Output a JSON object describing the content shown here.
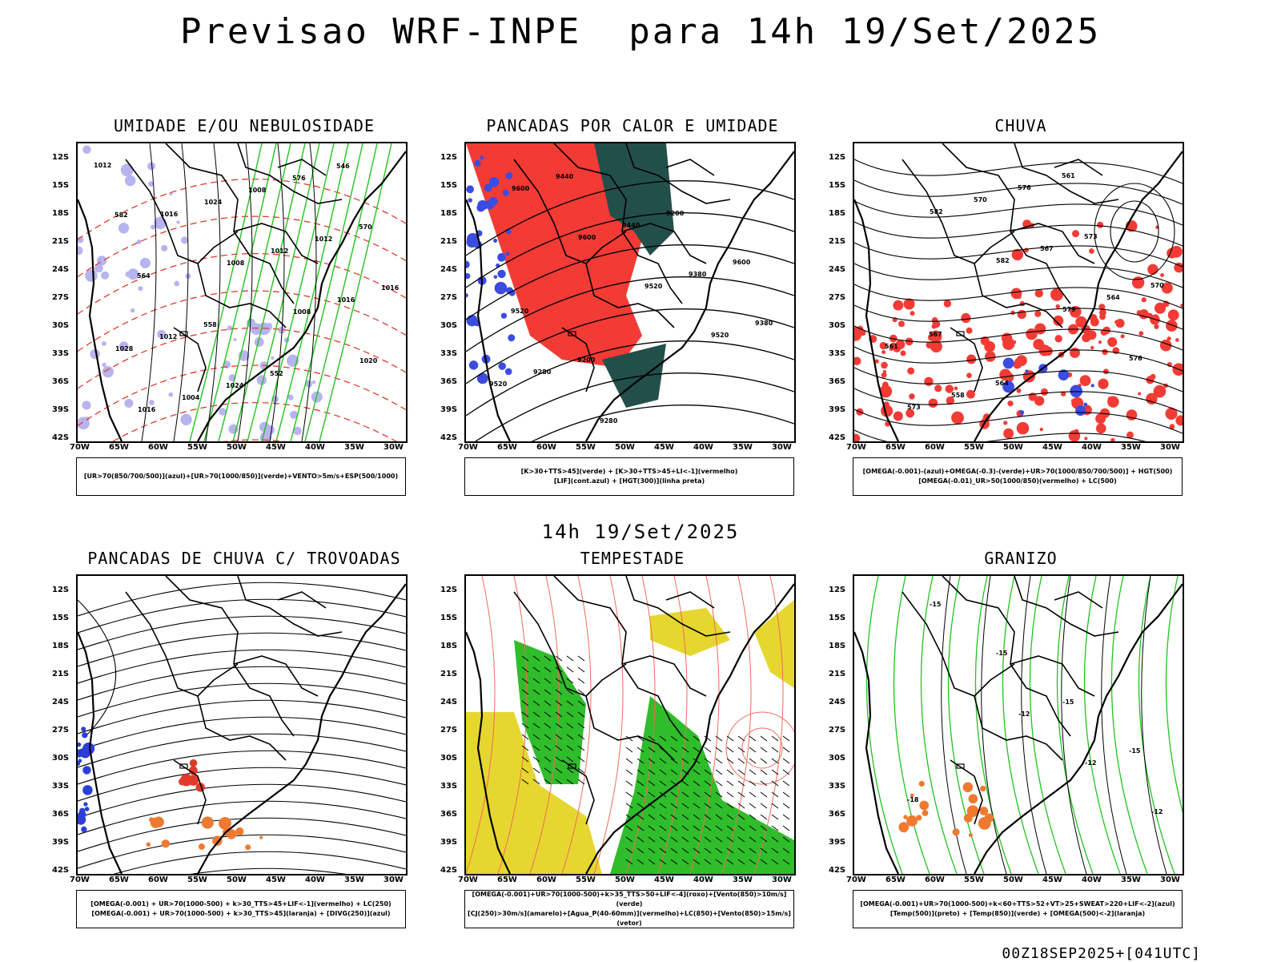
{
  "header": {
    "title": "Previsao WRF-INPE  para 14h 19/Set/2025",
    "mid_title": "14h 19/Set/2025",
    "footer": "00Z18SEP2025+[041UTC]"
  },
  "axes": {
    "lat_labels": [
      "12S",
      "15S",
      "18S",
      "21S",
      "24S",
      "27S",
      "30S",
      "33S",
      "36S",
      "39S",
      "42S"
    ],
    "lon_labels": [
      "70W",
      "65W",
      "60W",
      "55W",
      "50W",
      "45W",
      "40W",
      "35W",
      "30W"
    ]
  },
  "panels": [
    {
      "title": "UMIDADE E/OU NEBULOSIDADE",
      "legend": [
        "[UR>70(850/700/500)](azul)+[UR>70(1000/850)](verde)+VENTO>5m/s+ESP(500/1000)"
      ],
      "contour_labels": [
        "1012",
        "1016",
        "1008",
        "1008",
        "1020",
        "1016",
        "1024",
        "1012",
        "1016",
        "1028",
        "1004",
        "1008",
        "1012",
        "1016",
        "1012",
        "1024",
        "576",
        "570",
        "564",
        "558",
        "552",
        "546",
        "582"
      ]
    },
    {
      "title": "PANCADAS POR CALOR E UMIDADE",
      "legend": [
        "[K>30+TTS>45](verde) + [K>30+TTS>45+LI<-1](vermelho)",
        "[LIF](cont.azul) + [HGT(300)](linha preta)"
      ],
      "contour_labels": [
        "9600",
        "9600",
        "9520",
        "9520",
        "9520",
        "9440",
        "9440",
        "9380",
        "9380",
        "9280",
        "9280",
        "9200",
        "9600",
        "9520",
        "9200"
      ]
    },
    {
      "title": "CHUVA",
      "legend": [
        "[OMEGA(-0.001)-(azul)+OMEGA(-0.3)-(verde)+UR>70(1000/850/700/500)] + HGT(500)",
        "[OMEGA(-0.01)_UR>50(1000/850)(vermelho) + LC(500)"
      ],
      "contour_labels": [
        "582",
        "582",
        "579",
        "576",
        "573",
        "570",
        "567",
        "564",
        "561",
        "558",
        "576",
        "573",
        "570",
        "567",
        "564",
        "561"
      ]
    },
    {
      "title": "PANCADAS DE CHUVA C/ TROVOADAS",
      "legend": [
        "[OMEGA(-0.001) + UR>70(1000-500) + k>30_TTS>45+LIF<-1](vermelho) + LC(250)",
        "[OMEGA(-0.001) + UR>70(1000-500) + k>30_TTS>45](laranja) + [DIVG(250)](azul)"
      ],
      "contour_labels": []
    },
    {
      "title": "TEMPESTADE",
      "legend": [
        "[OMEGA(-0.001)+UR>70(1000-500)+k>35_TTS>50+LIF<-4](roxo)+[Vento(850)>10m/s](verde)",
        "[CJ(250)>30m/s](amarelo)+[Agua_P(40-60mm)](vermelho)+LC(850)+[Vento(850)>15m/s](vetor)"
      ],
      "contour_labels": []
    },
    {
      "title": "GRANIZO",
      "legend": [
        "[OMEGA(-0.001)+UR>70(1000-500)+k<60+TTS>52+VT>25+SWEAT>220+LIF<-2](azul)",
        "[Temp(500)](preto) + [Temp(850)](verde) + [OMEGA(500)<-2](laranja)"
      ],
      "contour_labels": [
        "-12",
        "-12",
        "-12",
        "-15",
        "-15",
        "-15",
        "-15",
        "-18"
      ]
    }
  ]
}
